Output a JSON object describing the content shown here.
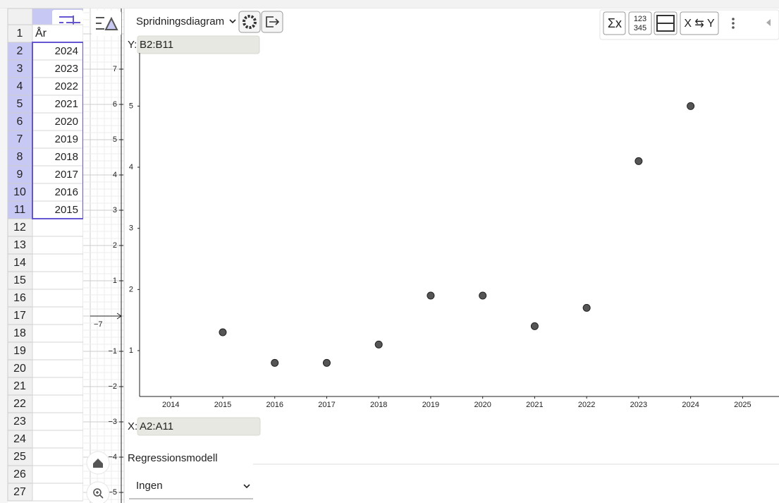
{
  "toolbar": {
    "plot_type": "Spridningsdiagram",
    "sum_button": "Σx",
    "count_button_top": "123",
    "count_button_bottom": "345",
    "swap_button": "X ⇆ Y"
  },
  "spreadsheet": {
    "row_numbers": [
      1,
      2,
      3,
      4,
      5,
      6,
      7,
      8,
      9,
      10,
      11,
      12,
      13,
      14,
      15,
      16,
      17,
      18,
      19,
      20,
      21,
      22,
      23,
      24,
      25,
      26,
      27
    ],
    "column_a_header": "År",
    "column_a_values": [
      2024,
      2023,
      2022,
      2021,
      2020,
      2019,
      2018,
      2017,
      2016,
      2015
    ]
  },
  "graphics": {
    "yticks": [
      7,
      6,
      5,
      4,
      3,
      2,
      1,
      {
        "value": -1,
        "label": "−1"
      },
      {
        "value": -2,
        "label": "−2"
      },
      {
        "value": -3,
        "label": "−3"
      },
      {
        "value": -4,
        "label": "−4"
      },
      {
        "value": -5,
        "label": "−5"
      }
    ],
    "x_label": "−7"
  },
  "y_source": {
    "label": "Y:",
    "value": "B2:B11"
  },
  "x_source": {
    "label": "X:",
    "value": "A2:A11"
  },
  "regression": {
    "label": "Regressionsmodell",
    "selected": "Ingen"
  },
  "chart_data": {
    "type": "scatter",
    "x": [
      2015,
      2016,
      2017,
      2018,
      2019,
      2020,
      2021,
      2022,
      2023,
      2024
    ],
    "values": [
      1.3,
      0.8,
      0.8,
      1.1,
      1.9,
      1.9,
      1.4,
      1.7,
      4.1,
      5.0
    ],
    "color": "#555555",
    "xlim": [
      2013.4,
      2025.7
    ],
    "ylim": [
      0.25,
      5.87
    ],
    "xticks": [
      2014,
      2015,
      2016,
      2017,
      2018,
      2019,
      2020,
      2021,
      2022,
      2023,
      2024,
      2025
    ],
    "yticks": [
      1,
      2,
      3,
      4,
      5
    ]
  }
}
